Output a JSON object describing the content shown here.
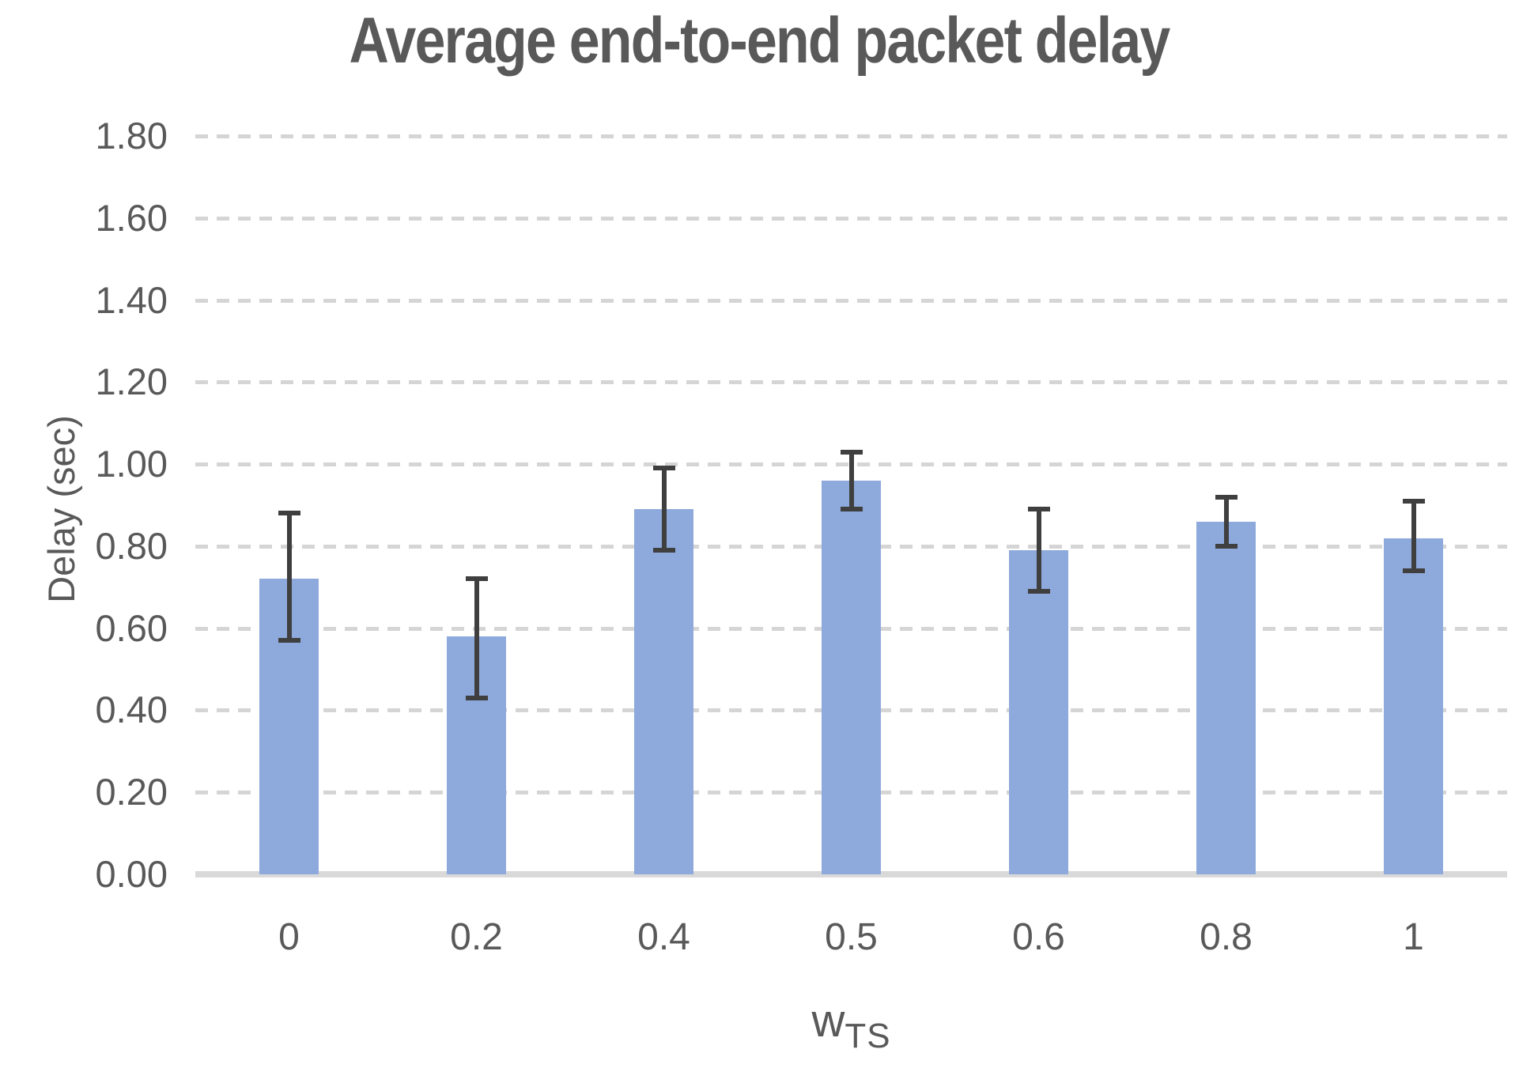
{
  "chart_data": {
    "type": "bar",
    "title": "Average end-to-end packet delay",
    "ylabel": "Delay (sec)",
    "xlabel_main": "w",
    "xlabel_sub": "TS",
    "categories": [
      "0",
      "0.2",
      "0.4",
      "0.5",
      "0.6",
      "0.8",
      "1"
    ],
    "series": [
      {
        "name": "Average end-to-end packet delay",
        "values": [
          0.72,
          0.58,
          0.89,
          0.96,
          0.79,
          0.86,
          0.82
        ],
        "error_high": [
          0.88,
          0.72,
          0.99,
          1.03,
          0.89,
          0.92,
          0.91
        ],
        "error_low": [
          0.57,
          0.43,
          0.79,
          0.89,
          0.69,
          0.8,
          0.74
        ]
      }
    ],
    "ylim": [
      0,
      1.8
    ],
    "ytick_step": 0.2,
    "ytick_decimals": 2,
    "grid": "horizontal-dashed",
    "legend_position": "none",
    "colors": {
      "bar_fill": "#8EA9DC",
      "error_bar": "#3F3F3F",
      "gridline": "#D5D5D5",
      "axis_line": "#D9D9D9",
      "text": "#595959"
    }
  }
}
